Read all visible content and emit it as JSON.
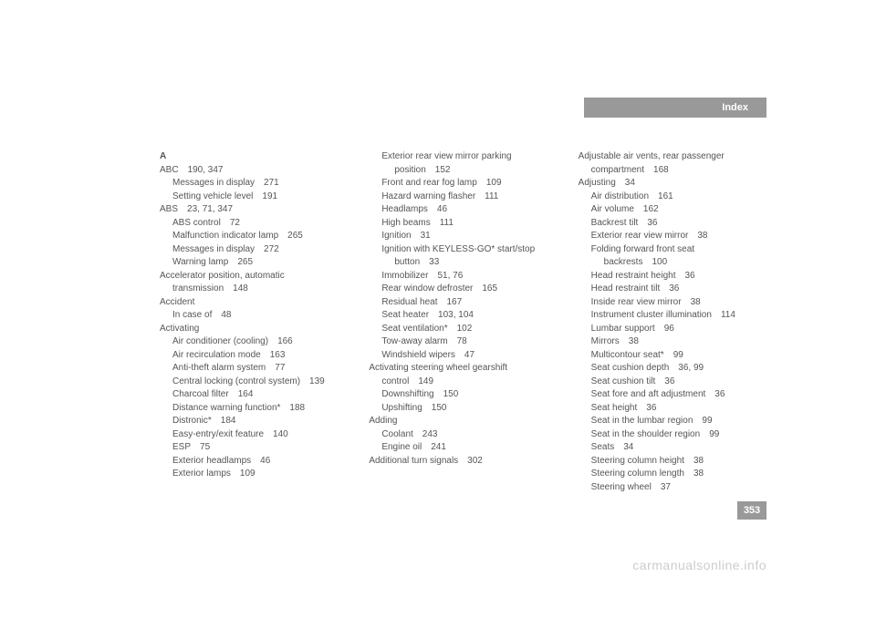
{
  "header": {
    "label": "Index"
  },
  "page_number": "353",
  "watermark": "carmanualsonline.info",
  "columns": [
    {
      "letter": "A",
      "entries": [
        {
          "text": "ABC",
          "page": "190, 347",
          "indent": 0
        },
        {
          "text": "Messages in display",
          "page": "271",
          "indent": 1
        },
        {
          "text": "Setting vehicle level",
          "page": "191",
          "indent": 1
        },
        {
          "text": "ABS",
          "page": "23, 71, 347",
          "indent": 0
        },
        {
          "text": "ABS control",
          "page": "72",
          "indent": 1
        },
        {
          "text": "Malfunction indicator lamp",
          "page": "265",
          "indent": 1
        },
        {
          "text": "Messages in display",
          "page": "272",
          "indent": 1
        },
        {
          "text": "Warning lamp",
          "page": "265",
          "indent": 1
        },
        {
          "text": "Accelerator position, automatic",
          "page": "",
          "indent": 0
        },
        {
          "text": "transmission",
          "page": "148",
          "indent": 1,
          "continuation": true
        },
        {
          "text": "Accident",
          "page": "",
          "indent": 0
        },
        {
          "text": "In case of",
          "page": "48",
          "indent": 1
        },
        {
          "text": "Activating",
          "page": "",
          "indent": 0
        },
        {
          "text": "Air conditioner (cooling)",
          "page": "166",
          "indent": 1
        },
        {
          "text": "Air recirculation mode",
          "page": "163",
          "indent": 1
        },
        {
          "text": "Anti-theft alarm system",
          "page": "77",
          "indent": 1
        },
        {
          "text": "Central locking (control system)",
          "page": "139",
          "indent": 1
        },
        {
          "text": "Charcoal filter",
          "page": "164",
          "indent": 1
        },
        {
          "text": "Distance warning function*",
          "page": "188",
          "indent": 1
        },
        {
          "text": "Distronic*",
          "page": "184",
          "indent": 1
        },
        {
          "text": "Easy-entry/exit feature",
          "page": "140",
          "indent": 1
        },
        {
          "text": "ESP",
          "page": "75",
          "indent": 1
        },
        {
          "text": "Exterior headlamps",
          "page": "46",
          "indent": 1
        },
        {
          "text": "Exterior lamps",
          "page": "109",
          "indent": 1
        }
      ]
    },
    {
      "entries": [
        {
          "text": "Exterior rear view mirror parking",
          "page": "",
          "indent": 1
        },
        {
          "text": "position",
          "page": "152",
          "indent": 2,
          "continuation": true
        },
        {
          "text": "Front and rear fog lamp",
          "page": "109",
          "indent": 1
        },
        {
          "text": "Hazard warning flasher",
          "page": "111",
          "indent": 1
        },
        {
          "text": "Headlamps",
          "page": "46",
          "indent": 1
        },
        {
          "text": "High beams",
          "page": "111",
          "indent": 1
        },
        {
          "text": "Ignition",
          "page": "31",
          "indent": 1
        },
        {
          "text": "Ignition with KEYLESS-GO* start/stop",
          "page": "",
          "indent": 1
        },
        {
          "text": "button",
          "page": "33",
          "indent": 2,
          "continuation": true
        },
        {
          "text": "Immobilizer",
          "page": "51, 76",
          "indent": 1
        },
        {
          "text": "Rear window defroster",
          "page": "165",
          "indent": 1
        },
        {
          "text": "Residual heat",
          "page": "167",
          "indent": 1
        },
        {
          "text": "Seat heater",
          "page": "103, 104",
          "indent": 1
        },
        {
          "text": "Seat ventilation*",
          "page": "102",
          "indent": 1
        },
        {
          "text": "Tow-away alarm",
          "page": "78",
          "indent": 1
        },
        {
          "text": "Windshield wipers",
          "page": "47",
          "indent": 1
        },
        {
          "text": "Activating steering wheel gearshift",
          "page": "",
          "indent": 0
        },
        {
          "text": "control",
          "page": "149",
          "indent": 1,
          "continuation": true
        },
        {
          "text": "Downshifting",
          "page": "150",
          "indent": 1
        },
        {
          "text": "Upshifting",
          "page": "150",
          "indent": 1
        },
        {
          "text": "Adding",
          "page": "",
          "indent": 0
        },
        {
          "text": "Coolant",
          "page": "243",
          "indent": 1
        },
        {
          "text": "Engine oil",
          "page": "241",
          "indent": 1
        },
        {
          "text": "Additional turn signals",
          "page": "302",
          "indent": 0
        }
      ]
    },
    {
      "entries": [
        {
          "text": "Adjustable air vents, rear passenger",
          "page": "",
          "indent": 0
        },
        {
          "text": "compartment",
          "page": "168",
          "indent": 1,
          "continuation": true
        },
        {
          "text": "Adjusting",
          "page": "34",
          "indent": 0
        },
        {
          "text": "Air distribution",
          "page": "161",
          "indent": 1
        },
        {
          "text": "Air volume",
          "page": "162",
          "indent": 1
        },
        {
          "text": "Backrest tilt",
          "page": "36",
          "indent": 1
        },
        {
          "text": "Exterior rear view mirror",
          "page": "38",
          "indent": 1
        },
        {
          "text": "Folding forward front seat",
          "page": "",
          "indent": 1
        },
        {
          "text": "backrests",
          "page": "100",
          "indent": 2,
          "continuation": true
        },
        {
          "text": "Head restraint height",
          "page": "36",
          "indent": 1
        },
        {
          "text": "Head restraint tilt",
          "page": "36",
          "indent": 1
        },
        {
          "text": "Inside rear view mirror",
          "page": "38",
          "indent": 1
        },
        {
          "text": "Instrument cluster illumination",
          "page": "114",
          "indent": 1
        },
        {
          "text": "Lumbar support",
          "page": "96",
          "indent": 1
        },
        {
          "text": "Mirrors",
          "page": "38",
          "indent": 1
        },
        {
          "text": "Multicontour seat*",
          "page": "99",
          "indent": 1
        },
        {
          "text": "Seat cushion depth",
          "page": "36, 99",
          "indent": 1
        },
        {
          "text": "Seat cushion tilt",
          "page": "36",
          "indent": 1
        },
        {
          "text": "Seat fore and aft adjustment",
          "page": "36",
          "indent": 1
        },
        {
          "text": "Seat height",
          "page": "36",
          "indent": 1
        },
        {
          "text": "Seat in the lumbar region",
          "page": "99",
          "indent": 1
        },
        {
          "text": "Seat in the shoulder region",
          "page": "99",
          "indent": 1
        },
        {
          "text": "Seats",
          "page": "34",
          "indent": 1
        },
        {
          "text": "Steering column height",
          "page": "38",
          "indent": 1
        },
        {
          "text": "Steering column length",
          "page": "38",
          "indent": 1
        },
        {
          "text": "Steering wheel",
          "page": "37",
          "indent": 1
        }
      ]
    }
  ]
}
